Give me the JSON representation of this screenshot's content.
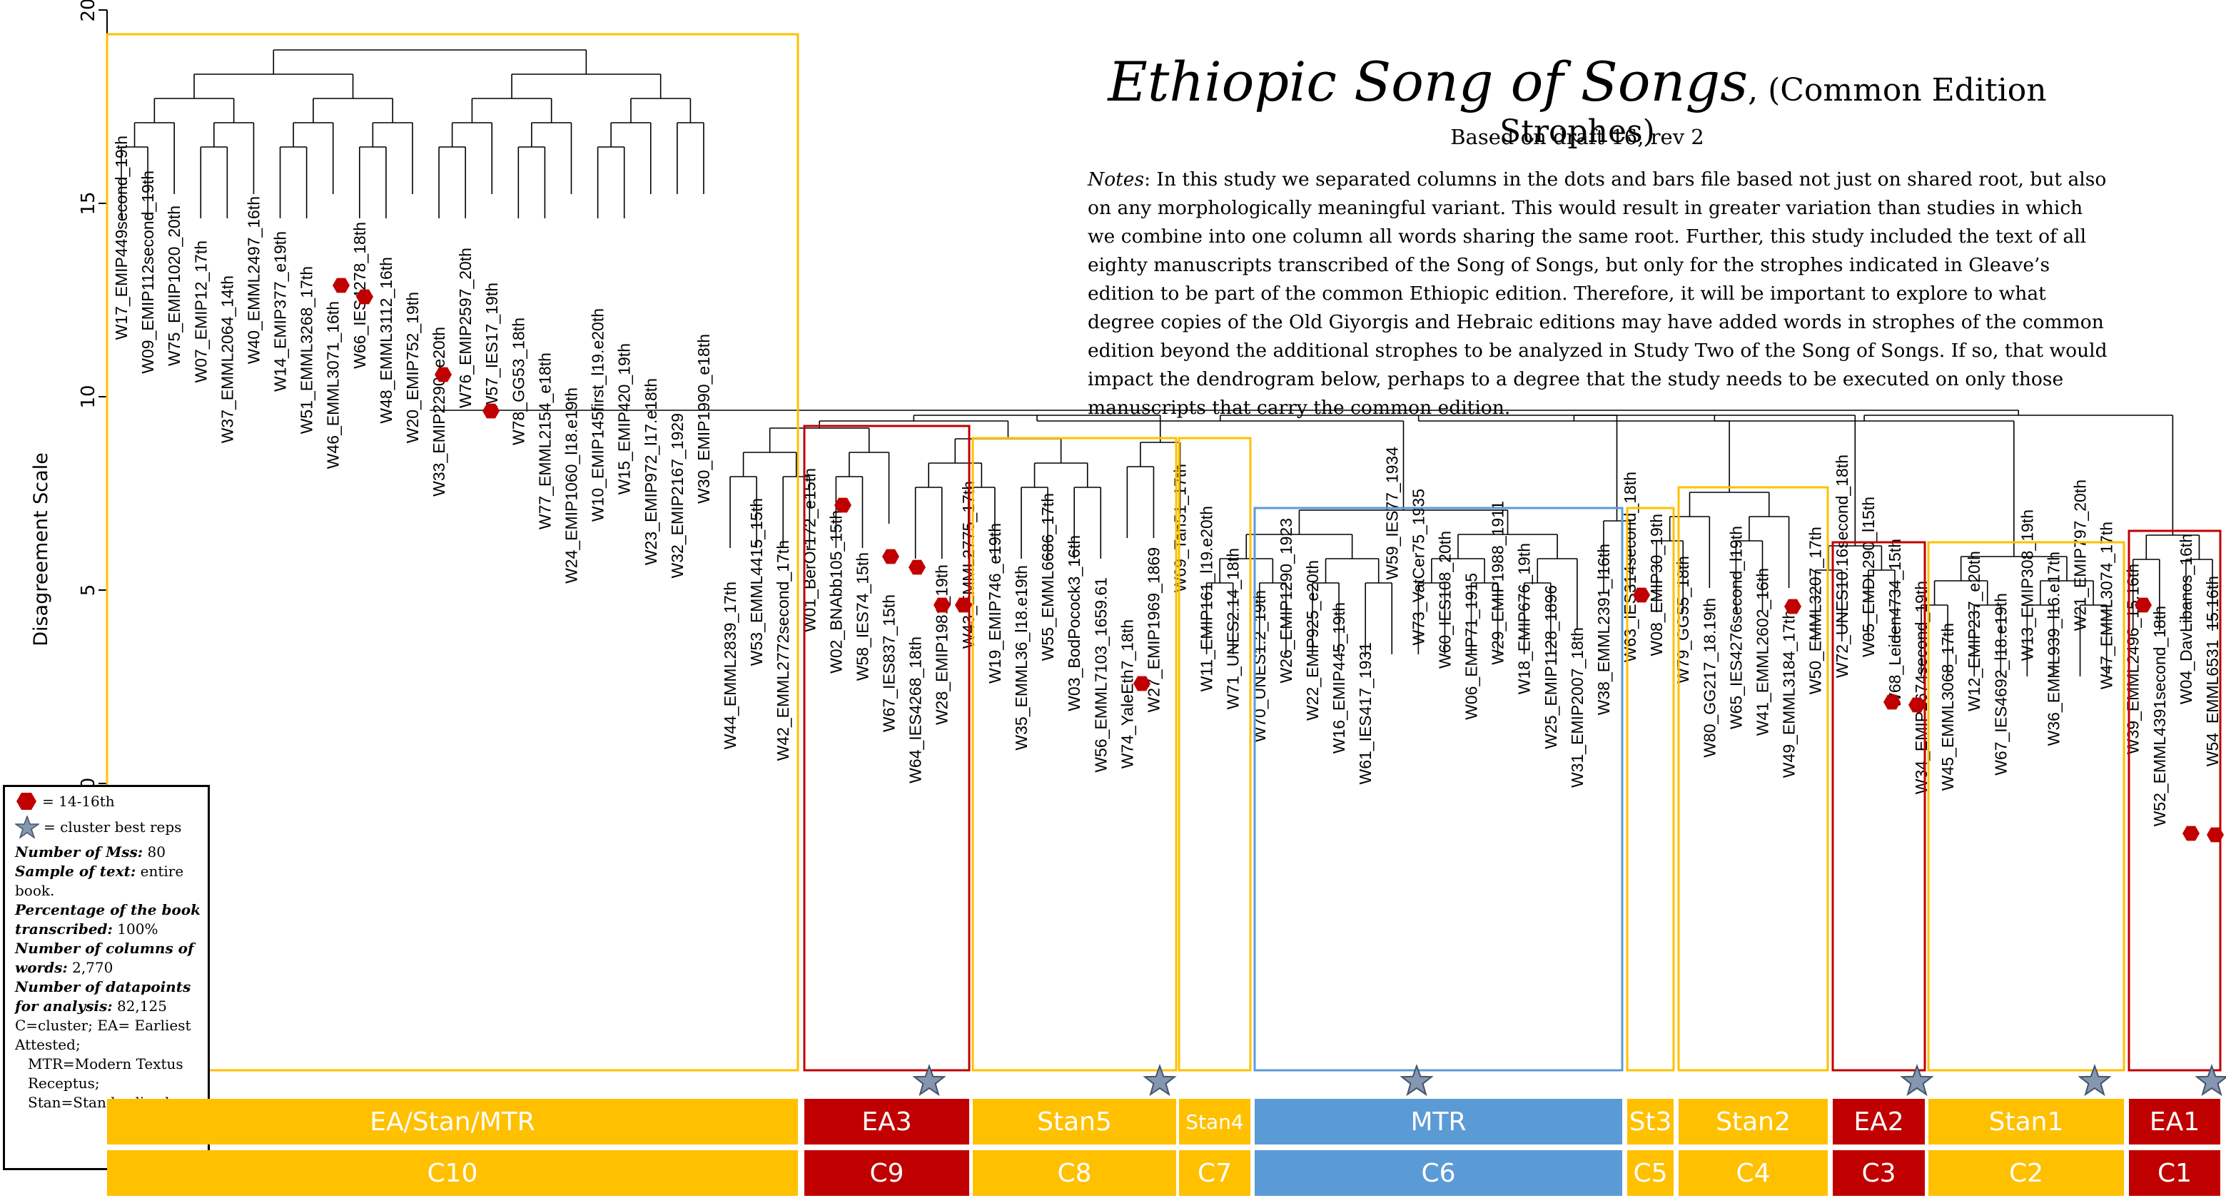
{
  "title": {
    "main": "Ethiopic Song of Songs",
    "sub": ", (Common Edition Strophes)",
    "draft": "Based on draft 16, rev 2"
  },
  "notes": {
    "label": "Notes",
    "text": ": In this study we separated columns in the dots and bars file based not just on shared root, but also on any morphologically meaningful variant. This would result in greater variation than studies in which we combine into one column all words sharing the same root. Further, this study included the text of all eighty manuscripts transcribed of the Song of Songs, but only for the strophes indicated in Gleave’s edition to be part of the common Ethiopic edition. Therefore, it will be important to explore to what degree copies of the Old Giyorgis and Hebraic editions may have added words in strophes of the common edition beyond the additional strophes to be analyzed in Study Two of the Song of Songs. If so, that would impact the dendrogram below, perhaps to a degree that the study needs to be executed on only those manuscripts that carry the common edition."
  },
  "axis": {
    "ylabel": "Disagreement Scale",
    "ticks": [
      "0",
      "5",
      "10",
      "15",
      "20"
    ]
  },
  "legend": {
    "hex_label": "= 14-16th",
    "star_label": "= cluster best reps",
    "mss_label": "Number of Mss:",
    "mss_value": "80",
    "sample_label": "Sample  of text:",
    "sample_value": "entire book.",
    "pct_label": "Percentage of the book transcribed:",
    "pct_value": "100%",
    "cols_label": "Number of columns of words:",
    "cols_value": "2,770",
    "dp_label": "Number of datapoints for analysis:",
    "dp_value": "82,125",
    "abbr1": "C=cluster; EA= Earliest Attested;",
    "abbr2": "MTR=Modern Textus Receptus;",
    "abbr3": "Stan=Standardized"
  },
  "colors": {
    "yellow": "#FFC000",
    "red": "#C00000",
    "blue": "#5B9BD5",
    "hex": "#C00000",
    "star": "#8496B0"
  },
  "groups": [
    {
      "label": "EA/Stan/MTR",
      "cluster": "C10",
      "color": "yellow"
    },
    {
      "label": "EA3",
      "cluster": "C9",
      "color": "red"
    },
    {
      "label": "Stan5",
      "cluster": "C8",
      "color": "yellow"
    },
    {
      "label": "Stan4",
      "cluster": "C7",
      "color": "yellow"
    },
    {
      "label": "MTR",
      "cluster": "C6",
      "color": "blue"
    },
    {
      "label": "St3",
      "cluster": "C5",
      "color": "yellow"
    },
    {
      "label": "Stan2",
      "cluster": "C4",
      "color": "yellow"
    },
    {
      "label": "EA2",
      "cluster": "C3",
      "color": "red"
    },
    {
      "label": "Stan1",
      "cluster": "C2",
      "color": "yellow"
    },
    {
      "label": "EA1",
      "cluster": "C1",
      "color": "red"
    }
  ],
  "leaves": [
    "W17_EMIP449second_19th",
    "W09_EMIP112second_19th",
    "W75_EMIP1020_20th",
    "W07_EMIP12_17th",
    "W37_EMML2064_14th",
    "W40_EMML2497_16th",
    "W14_EMIP377_e19th",
    "W51_EMML3268_17th",
    "W46_EMML3071_16th",
    "W66_IES4278_18th",
    "W48_EMML3112_16th",
    "W20_EMIP752_19th",
    "W33_EMIP2290_e20th",
    "W76_EMIP2597_20th",
    "W57_IES17_19th",
    "W78_GG53_18th",
    "W77_EMML2154_e18th",
    "W24_EMIP1060_l18.e19th",
    "W10_EMIP145first_l19.e20th",
    "W15_EMIP420_19th",
    "W23_EMIP972_l17.e18th",
    "W32_EMIP2167_1929",
    "W30_EMIP1990_e18th",
    "W44_EMML2839_17th",
    "W53_EMML4415_15th",
    "W42_EMML2772second_17th",
    "W01_BerOr172_e15th",
    "W02_BNAbb105_15th",
    "W58_IES74_15th",
    "W67_IES837_15th",
    "W64_IES4268_18th",
    "W28_EMIP1981_19th",
    "W43_EMML2775_17th",
    "W19_EMIP746_e19th",
    "W35_EMML36_l18.e19th",
    "W55_EMML6686_17th",
    "W03_BodPocock3_16th",
    "W56_EMML7103_1659.61",
    "W74_YaleEth7_18th",
    "W27_EMIP1969_1869",
    "W69_Tan51_17th",
    "W11_EMIP161_l19.e20th",
    "W71_UNES2.14_18th",
    "W70_UNES1.2_19th",
    "W26_EMIP1290_1923",
    "W22_EMIP925_e20th",
    "W16_EMIP445_19th",
    "W61_IES417_1931",
    "W59_IES77_1934",
    "W73_VatCer75_1935",
    "W60_IES108_20th",
    "W06_EMIP71_1915",
    "W29_EMIP1988_1911",
    "W18_EMIP676_19th",
    "W25_EMIP1128_1896",
    "W31_EMIP2007_18th",
    "W38_EMML2391_l16th",
    "W63_IES314second_18th",
    "W08_EMIP30_19th",
    "W79_GG55_18th",
    "W80_GG217_18.19th",
    "W65_IES4276second_l19th",
    "W41_EMML2602_16th",
    "W49_EMML3184_17th",
    "W50_EMML3207_17th",
    "W72_UNES10.16second_18th",
    "W05_EMDL290_l15th",
    "W68_Leiden4734_15th",
    "W34_EMIP2674second_19th",
    "W45_EMML3068_17th",
    "W12_EMIP237_e20th",
    "W67_IES4692_l18.e19th",
    "W13_EMIP308_19th",
    "W36_EMML939_l16.e17th",
    "W21_EMIP797_20th",
    "W47_EMML3074_17th",
    "W39_EMML2496_15.16th",
    "W52_EMML4391second_18th",
    "W04_DavLibanos_16th",
    "W54_EMML6531_15.16th"
  ]
}
